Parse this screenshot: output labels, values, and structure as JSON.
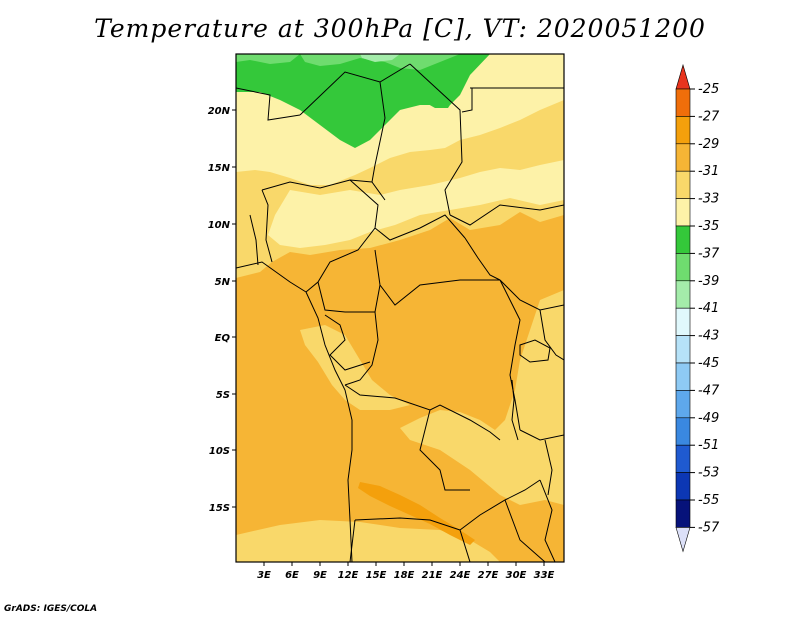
{
  "title": "Temperature at 300hPa [C], VT: 2020051200",
  "credit": "GrADS: IGES/COLA",
  "map": {
    "lat_labels": [
      "20N",
      "15N",
      "10N",
      "5N",
      "EQ",
      "5S",
      "10S",
      "15S"
    ],
    "lon_labels": [
      "3E",
      "6E",
      "9E",
      "12E",
      "15E",
      "18E",
      "21E",
      "24E",
      "27E",
      "30E",
      "33E"
    ]
  },
  "colorbar": {
    "labels": [
      "-25",
      "-27",
      "-29",
      "-31",
      "-33",
      "-35",
      "-37",
      "-39",
      "-41",
      "-43",
      "-45",
      "-47",
      "-49",
      "-51",
      "-53",
      "-55",
      "-57"
    ],
    "colors": [
      "#e83c0e",
      "#f06e0a",
      "#f4a00c",
      "#f6b535",
      "#f9d86a",
      "#fdf2a8",
      "#34c83a",
      "#6fdc6f",
      "#a4ecaa",
      "#e0f8fc",
      "#b6e2f8",
      "#8ecaf4",
      "#5ea8ec",
      "#3a88e0",
      "#1f5ad0",
      "#0c37b4",
      "#06127a"
    ],
    "top_color": "#e8341e",
    "bottom_color": "#dce0f8"
  },
  "fields": {
    "green_37": "#34c83a",
    "green_39": "#6fdc6f",
    "green_41": "#a4ecaa",
    "yellow_35": "#fdf2a8",
    "yellow_33": "#f9d86a",
    "orange_31": "#f6b535",
    "orange_29": "#f4a00c",
    "border_color": "#000000"
  }
}
